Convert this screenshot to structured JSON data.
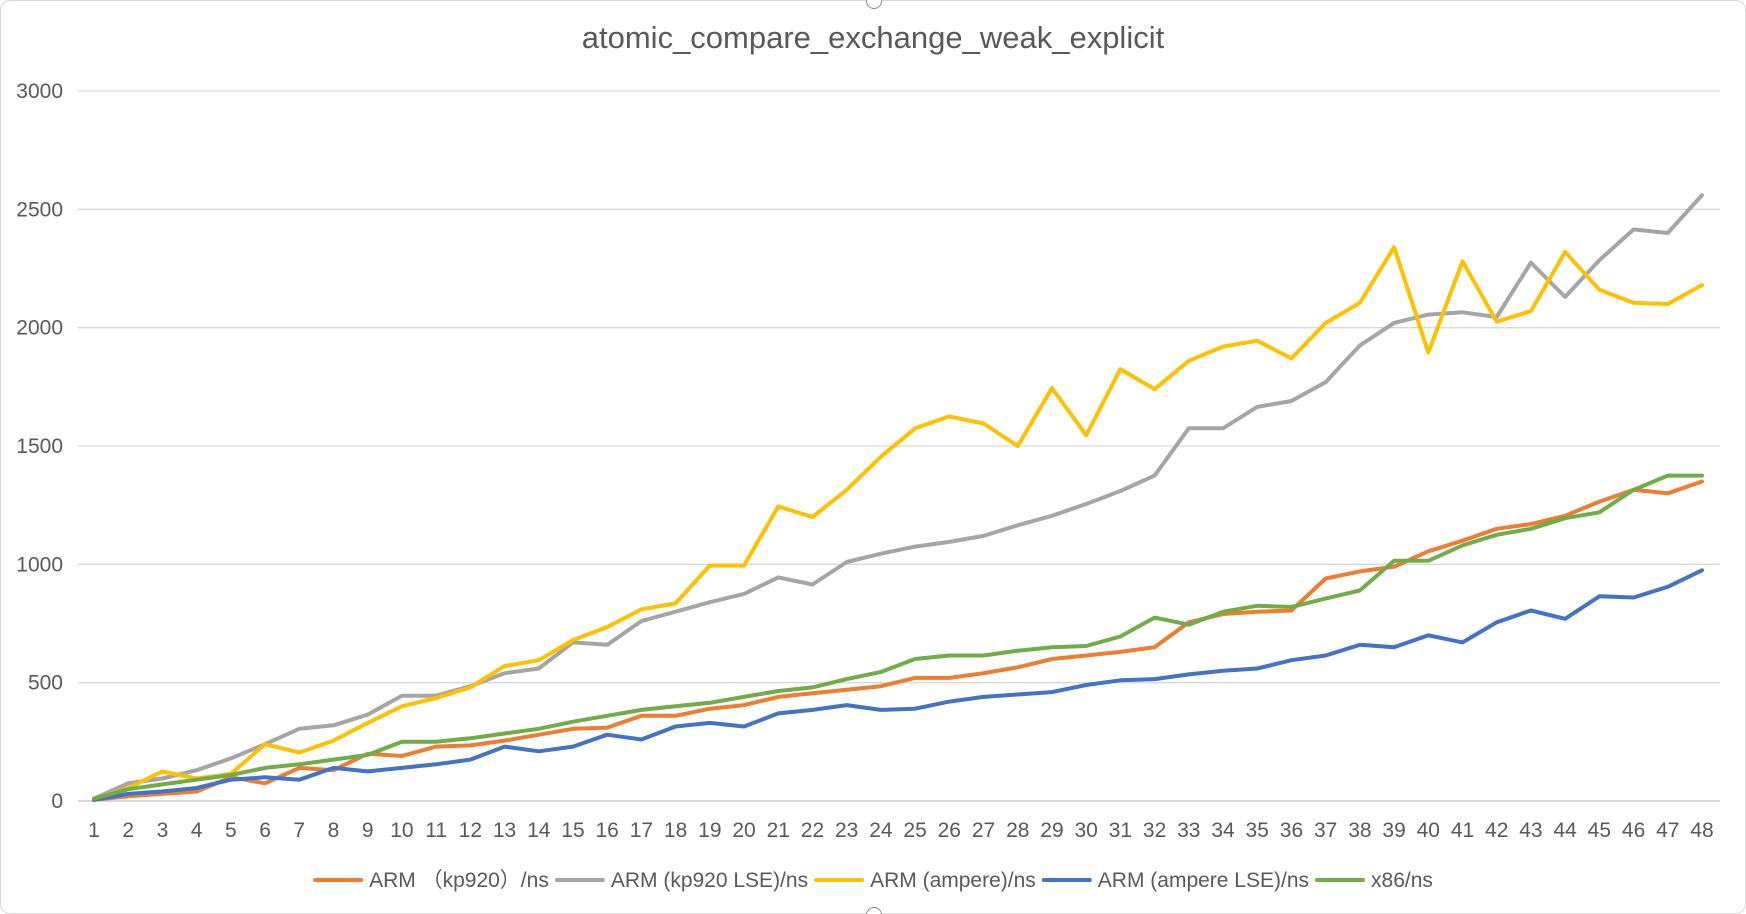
{
  "chart_data": {
    "type": "line",
    "title": "atomic_compare_exchange_weak_explicit",
    "xlabel": "",
    "ylabel": "",
    "ylim": [
      0,
      3000
    ],
    "yticks": [
      0,
      500,
      1000,
      1500,
      2000,
      2500,
      3000
    ],
    "grid": "horizontal",
    "legend": "bottom",
    "categories": [
      "1",
      "2",
      "3",
      "4",
      "5",
      "6",
      "7",
      "8",
      "9",
      "10",
      "11",
      "12",
      "13",
      "14",
      "15",
      "16",
      "17",
      "18",
      "19",
      "20",
      "21",
      "22",
      "23",
      "24",
      "25",
      "26",
      "27",
      "28",
      "29",
      "30",
      "31",
      "32",
      "33",
      "34",
      "35",
      "36",
      "37",
      "38",
      "39",
      "40",
      "41",
      "42",
      "43",
      "44",
      "45",
      "46",
      "47",
      "48"
    ],
    "series": [
      {
        "name": "ARM （kp920）/ns",
        "color": "#ED7D31",
        "values": [
          5,
          20,
          30,
          40,
          100,
          75,
          140,
          130,
          200,
          190,
          230,
          235,
          255,
          280,
          305,
          310,
          360,
          360,
          390,
          405,
          440,
          455,
          470,
          485,
          520,
          520,
          540,
          565,
          600,
          615,
          630,
          650,
          755,
          790,
          800,
          805,
          940,
          970,
          990,
          1055,
          1100,
          1150,
          1170,
          1205,
          1265,
          1315,
          1300,
          1350
        ]
      },
      {
        "name": "ARM (kp920 LSE)/ns",
        "color": "#A5A5A5",
        "values": [
          10,
          75,
          95,
          130,
          180,
          240,
          305,
          320,
          365,
          445,
          445,
          485,
          540,
          560,
          670,
          660,
          760,
          800,
          840,
          875,
          945,
          915,
          1010,
          1045,
          1075,
          1095,
          1120,
          1165,
          1205,
          1255,
          1310,
          1375,
          1575,
          1575,
          1665,
          1690,
          1770,
          1925,
          2020,
          2055,
          2065,
          2045,
          2275,
          2130,
          2285,
          2415,
          2400,
          2560
        ]
      },
      {
        "name": "ARM (ampere)/ns",
        "color": "#FFC000",
        "values": [
          10,
          55,
          125,
          95,
          115,
          240,
          205,
          255,
          330,
          400,
          435,
          480,
          570,
          595,
          680,
          735,
          810,
          835,
          995,
          995,
          1245,
          1200,
          1315,
          1455,
          1575,
          1625,
          1595,
          1500,
          1745,
          1545,
          1825,
          1740,
          1860,
          1920,
          1945,
          1870,
          2020,
          2105,
          2340,
          1895,
          2280,
          2025,
          2070,
          2320,
          2160,
          2105,
          2100,
          2180
        ]
      },
      {
        "name": "ARM (ampere LSE)/ns",
        "color": "#4472C4",
        "values": [
          5,
          30,
          40,
          55,
          90,
          100,
          90,
          140,
          125,
          140,
          155,
          175,
          230,
          210,
          230,
          280,
          260,
          315,
          330,
          315,
          370,
          385,
          405,
          385,
          390,
          420,
          440,
          450,
          460,
          490,
          510,
          515,
          535,
          550,
          560,
          595,
          615,
          660,
          650,
          700,
          670,
          755,
          805,
          770,
          865,
          860,
          905,
          975
        ]
      },
      {
        "name": "x86/ns",
        "color": "#70AD47",
        "values": [
          10,
          50,
          70,
          90,
          110,
          140,
          155,
          175,
          195,
          250,
          250,
          265,
          285,
          305,
          335,
          360,
          385,
          400,
          415,
          440,
          465,
          480,
          515,
          545,
          600,
          615,
          615,
          635,
          650,
          655,
          695,
          775,
          745,
          800,
          825,
          820,
          855,
          890,
          1015,
          1015,
          1080,
          1125,
          1150,
          1195,
          1220,
          1315,
          1375,
          1375
        ]
      }
    ]
  }
}
